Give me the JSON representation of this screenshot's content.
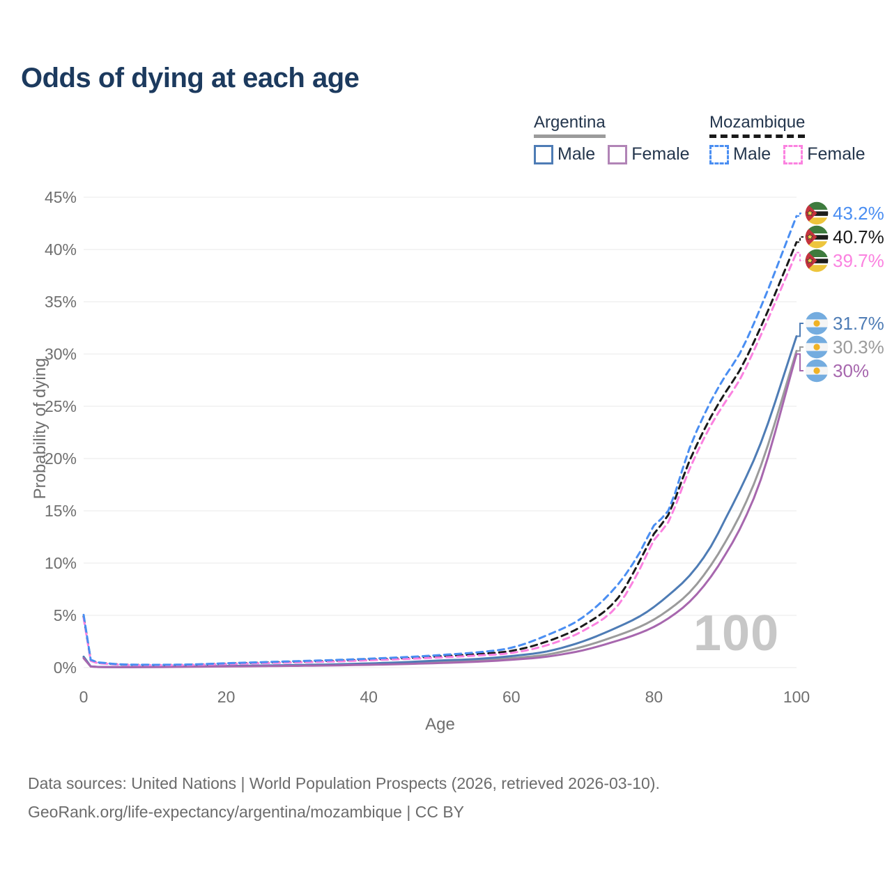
{
  "title": "Odds of dying at each age",
  "legend": {
    "groups": [
      {
        "label": "Argentina",
        "underline_style": "solid",
        "underline_color": "#9b9b9b",
        "entries": [
          {
            "label": "Male",
            "color": "#4e7cb5",
            "dashed": false
          },
          {
            "label": "Female",
            "color": "#b184b6",
            "dashed": false
          }
        ]
      },
      {
        "label": "Mozambique",
        "underline_style": "dashed",
        "underline_color": "#1a1a1a",
        "entries": [
          {
            "label": "Male",
            "color": "#4a8ef2",
            "dashed": true
          },
          {
            "label": "Female",
            "color": "#fb82e0",
            "dashed": true
          }
        ]
      }
    ]
  },
  "chart_data": {
    "type": "line",
    "title": "Odds of dying at each age",
    "xlabel": "Age",
    "ylabel": "Probability of dying",
    "xlim": [
      0,
      100
    ],
    "ylim": [
      0,
      45
    ],
    "x_ticks": [
      0,
      20,
      40,
      60,
      80,
      100
    ],
    "y_ticks": [
      0,
      5,
      10,
      15,
      20,
      25,
      30,
      35,
      40,
      45
    ],
    "y_tick_suffix": "%",
    "grid": "horizontal",
    "legend_position": "top-right",
    "watermark": "100",
    "ages": [
      0,
      1,
      2,
      5,
      10,
      15,
      20,
      25,
      30,
      35,
      40,
      45,
      50,
      55,
      60,
      65,
      70,
      75,
      78,
      80,
      82,
      85,
      88,
      90,
      92,
      95,
      100
    ],
    "series": [
      {
        "name": "Argentina Both sexes",
        "country": "argentina",
        "sex": "both",
        "color": "#9b9b9b",
        "dashed": false,
        "flag": "argentina",
        "end_value": 30.3,
        "end_label": "30.3%",
        "values": [
          0.95,
          0.11,
          0.06,
          0.05,
          0.06,
          0.09,
          0.13,
          0.17,
          0.21,
          0.26,
          0.33,
          0.42,
          0.55,
          0.68,
          0.9,
          1.25,
          2.0,
          3.1,
          3.9,
          4.6,
          5.5,
          7.2,
          9.8,
          12.0,
          14.5,
          19.3,
          30.3
        ]
      },
      {
        "name": "Argentina Male",
        "country": "argentina",
        "sex": "male",
        "color": "#4e7cb5",
        "dashed": false,
        "flag": "argentina",
        "end_value": 31.7,
        "end_label": "31.7%",
        "values": [
          1.05,
          0.12,
          0.07,
          0.05,
          0.07,
          0.11,
          0.16,
          0.2,
          0.25,
          0.31,
          0.4,
          0.52,
          0.68,
          0.82,
          1.1,
          1.55,
          2.5,
          3.9,
          4.9,
          5.8,
          6.9,
          8.8,
          11.6,
          14.2,
          16.9,
          21.5,
          31.7
        ]
      },
      {
        "name": "Argentina Female",
        "country": "argentina",
        "sex": "female",
        "color": "#a767ae",
        "dashed": false,
        "flag": "argentina",
        "end_value": 30.0,
        "end_label": "30%",
        "values": [
          0.9,
          0.1,
          0.06,
          0.04,
          0.05,
          0.08,
          0.11,
          0.14,
          0.17,
          0.21,
          0.27,
          0.34,
          0.44,
          0.56,
          0.75,
          1.05,
          1.65,
          2.6,
          3.3,
          3.9,
          4.7,
          6.3,
          8.7,
          10.8,
          13.2,
          18.0,
          30.0
        ]
      },
      {
        "name": "Mozambique Both sexes",
        "country": "mozambique",
        "sex": "both",
        "color": "#1a1a1a",
        "dashed": true,
        "flag": "mozambique",
        "end_value": 40.7,
        "end_label": "40.7%",
        "values": [
          4.9,
          0.7,
          0.46,
          0.3,
          0.25,
          0.28,
          0.38,
          0.47,
          0.56,
          0.65,
          0.77,
          0.9,
          1.08,
          1.28,
          1.6,
          2.5,
          4.0,
          6.7,
          10.2,
          12.8,
          14.6,
          19.8,
          24.0,
          26.3,
          28.4,
          32.6,
          40.7
        ]
      },
      {
        "name": "Mozambique Female",
        "country": "mozambique",
        "sex": "female",
        "color": "#fb82e0",
        "dashed": true,
        "flag": "mozambique",
        "end_value": 39.7,
        "end_label": "39.7%",
        "values": [
          4.75,
          0.65,
          0.42,
          0.28,
          0.23,
          0.26,
          0.34,
          0.42,
          0.5,
          0.58,
          0.7,
          0.82,
          0.97,
          1.15,
          1.4,
          2.15,
          3.5,
          6.0,
          9.4,
          12.2,
          13.9,
          19.0,
          23.2,
          25.4,
          27.5,
          31.8,
          39.7
        ]
      },
      {
        "name": "Mozambique Male",
        "country": "mozambique",
        "sex": "male",
        "color": "#4a8ef2",
        "dashed": true,
        "flag": "mozambique",
        "end_value": 43.2,
        "end_label": "43.2%",
        "values": [
          5.05,
          0.75,
          0.5,
          0.32,
          0.27,
          0.3,
          0.42,
          0.52,
          0.62,
          0.72,
          0.85,
          1.0,
          1.2,
          1.45,
          1.9,
          3.1,
          4.8,
          8.0,
          11.0,
          13.6,
          15.0,
          21.0,
          25.5,
          27.9,
          30.0,
          34.5,
          43.2
        ]
      }
    ]
  },
  "footer": {
    "line1": "Data sources: United Nations | World Population Prospects (2026, retrieved 2026-03-10).",
    "line2": "GeoRank.org/life-expectancy/argentina/mozambique | CC BY"
  }
}
